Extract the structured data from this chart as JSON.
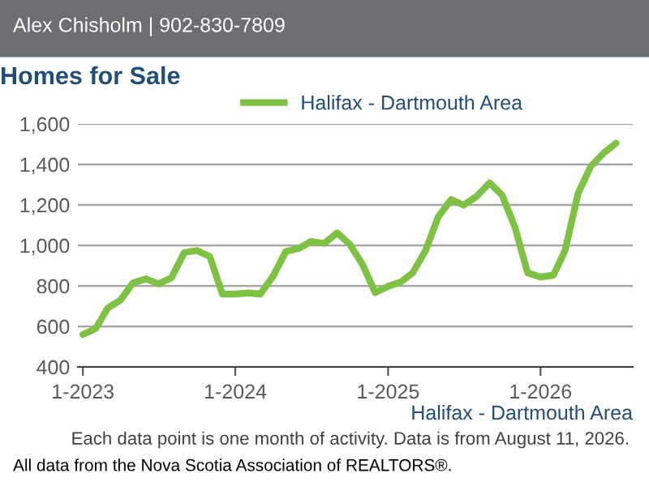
{
  "chart_data": {
    "type": "line",
    "title": "Homes for Sale",
    "subtitle": "Alex Chisholm | 902-830-7809",
    "x": [
      "2023-01",
      "2023-02",
      "2023-03",
      "2023-04",
      "2023-05",
      "2023-06",
      "2023-07",
      "2023-08",
      "2023-09",
      "2023-10",
      "2023-11",
      "2023-12",
      "2024-01",
      "2024-02",
      "2024-03",
      "2024-04",
      "2024-05",
      "2024-06",
      "2024-07",
      "2024-08",
      "2024-09",
      "2024-10",
      "2024-11",
      "2024-12",
      "2025-01",
      "2025-02",
      "2025-03",
      "2025-04",
      "2025-05",
      "2025-06",
      "2025-07",
      "2025-08",
      "2025-09",
      "2025-10",
      "2025-11",
      "2025-12",
      "2026-01",
      "2026-02",
      "2026-03",
      "2026-04",
      "2026-05",
      "2026-06",
      "2026-07"
    ],
    "series": [
      {
        "name": "Halifax - Dartmouth Area",
        "color": "#7dc242",
        "values": [
          560,
          590,
          690,
          730,
          815,
          835,
          810,
          840,
          965,
          975,
          945,
          760,
          760,
          765,
          760,
          850,
          970,
          985,
          1020,
          1010,
          1062,
          1006,
          905,
          767,
          798,
          820,
          865,
          976,
          1141,
          1227,
          1199,
          1242,
          1309,
          1248,
          1089,
          865,
          844,
          853,
          976,
          1257,
          1389,
          1456,
          1505
        ]
      }
    ],
    "xlim": [
      "2022-12-20",
      "2026-08-10"
    ],
    "xticks": [
      {
        "value": "2023-01",
        "label": "1-2023"
      },
      {
        "value": "2024-01",
        "label": "1-2024"
      },
      {
        "value": "2025-01",
        "label": "1-2025"
      },
      {
        "value": "2026-01",
        "label": "1-2026"
      }
    ],
    "ylim": [
      400,
      1600
    ],
    "yticks": [
      {
        "value": 400,
        "label": "400"
      },
      {
        "value": 600,
        "label": "600"
      },
      {
        "value": 800,
        "label": "800"
      },
      {
        "value": 1000,
        "label": "1,000"
      },
      {
        "value": 1200,
        "label": "1,200"
      },
      {
        "value": 1400,
        "label": "1,400"
      },
      {
        "value": 1600,
        "label": "1,600"
      }
    ],
    "grid": "y",
    "legend": "top",
    "marker": "none",
    "line_style": "solid",
    "xlabel": "Halifax - Dartmouth Area",
    "annotations": [
      "Each data point is one month of activity. Data is from August 11, 2026.",
      "All data from the Nova Scotia Association of REALTORS®."
    ]
  }
}
